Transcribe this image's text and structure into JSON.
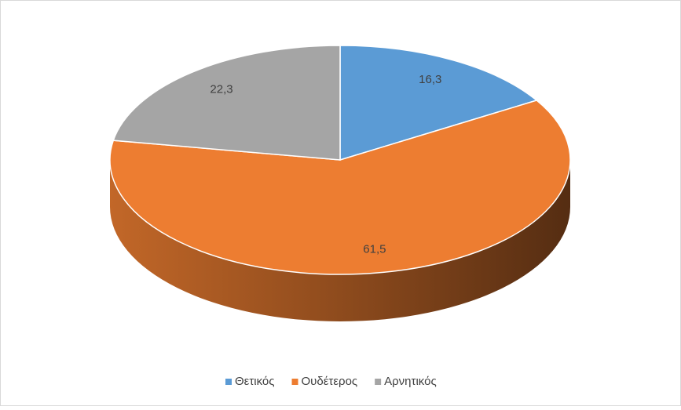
{
  "chart_data": {
    "type": "pie",
    "categories": [
      "Θετικός",
      "Ουδέτερος",
      "Αρνητικός"
    ],
    "values": [
      16.3,
      61.5,
      22.3
    ],
    "value_labels": [
      "16,3",
      "61,5",
      "22,3"
    ],
    "colors": [
      "#5b9bd5",
      "#ed7d31",
      "#a5a5a5"
    ],
    "legend": "bottom"
  }
}
